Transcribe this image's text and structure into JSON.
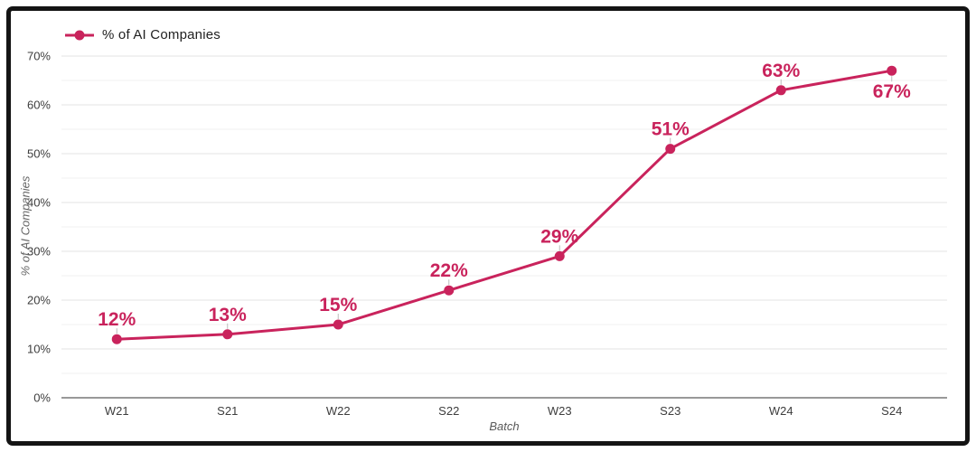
{
  "window": {
    "background": "#ffffff",
    "frame_border_color": "#141414"
  },
  "legend": {
    "label": "% of AI Companies",
    "marker_color": "#c9235c",
    "position": "top-left"
  },
  "chart_data": {
    "type": "line",
    "title": "",
    "categories": [
      "W21",
      "S21",
      "W22",
      "S22",
      "W23",
      "S23",
      "W24",
      "S24"
    ],
    "series": [
      {
        "name": "% of AI Companies",
        "values": [
          12,
          13,
          15,
          22,
          29,
          51,
          63,
          67
        ]
      }
    ],
    "point_labels": [
      "12%",
      "13%",
      "15%",
      "22%",
      "29%",
      "51%",
      "63%",
      "67%"
    ],
    "point_label_positions": [
      "above",
      "above",
      "above",
      "above",
      "above",
      "above",
      "above",
      "below"
    ],
    "xlabel": "Batch",
    "ylabel": "% of AI Companies",
    "ylim": [
      0,
      70
    ],
    "y_tick_values": [
      0,
      10,
      20,
      30,
      40,
      50,
      60,
      70
    ],
    "y_tick_labels": [
      "0%",
      "10%",
      "20%",
      "30%",
      "40%",
      "50%",
      "60%",
      "70%"
    ],
    "y_minor_step": 5,
    "grid": true,
    "legend_position": "top-left",
    "colors": {
      "line": "#c9235c",
      "point": "#c9235c",
      "point_label": "#c9235c",
      "gridline_major": "#e3e3e3",
      "gridline_minor": "#f2f2f2",
      "axis_line": "#999999",
      "tick_label": "#3d3d3d",
      "annotation_stem": "#bcbcbc"
    }
  }
}
